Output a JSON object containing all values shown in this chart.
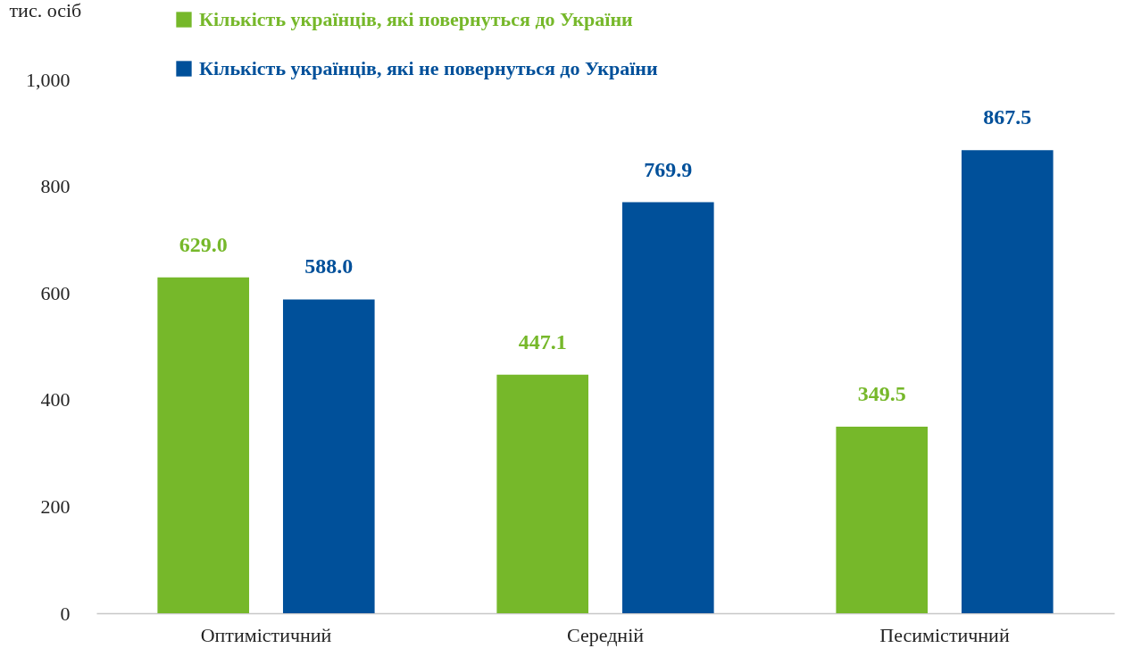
{
  "chart_data": {
    "type": "bar",
    "ylabel": "тис. осіб",
    "categories": [
      "Оптимістичний",
      "Середній",
      "Песимістичний"
    ],
    "series": [
      {
        "name": "Кількість українців, які повернуться до України",
        "color": "#76b82a",
        "values": [
          629.0,
          447.1,
          349.5
        ],
        "value_labels": [
          "629.0",
          "447.1",
          "349.5"
        ]
      },
      {
        "name": "Кількість українців, які не повернуться до України",
        "color": "#00509a",
        "values": [
          588.0,
          769.9,
          867.5
        ],
        "value_labels": [
          "588.0",
          "769.9",
          "867.5"
        ]
      }
    ],
    "ylim": [
      0,
      1000
    ],
    "yticks": [
      0,
      200,
      400,
      600,
      800,
      {
        "value": 1000,
        "label": "1,000"
      }
    ],
    "legend": "top left",
    "grid": false
  }
}
